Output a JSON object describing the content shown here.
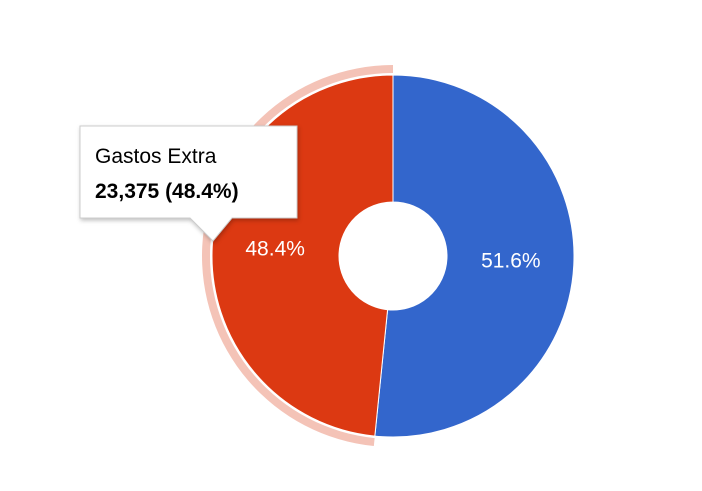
{
  "chart_data": {
    "type": "pie",
    "categories": [
      null,
      "Gastos Extra"
    ],
    "values": [
      51.6,
      48.4
    ],
    "value_labels": [
      "51.6%",
      "48.4%"
    ],
    "colors": [
      "#3366cc",
      "#dc3912"
    ],
    "hole": true,
    "tooltip": {
      "text": "23,375 (48.4%)"
    }
  }
}
